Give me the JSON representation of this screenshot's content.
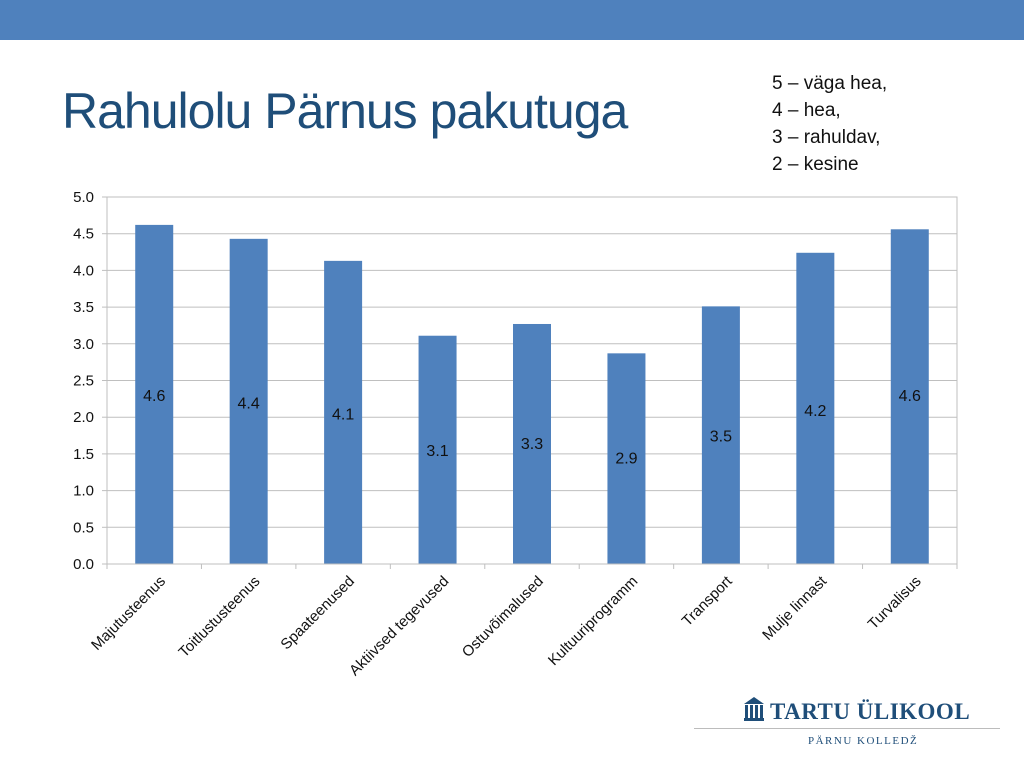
{
  "slide": {
    "title": "Rahulolu Pärnus pakutuga",
    "band_color": "#4f81bd",
    "title_color": "#1f4e79"
  },
  "legend_note": {
    "lines": [
      "5 – väga hea,",
      "4 – hea,",
      "3 – rahuldav,",
      "2 – kesine"
    ]
  },
  "chart_data": {
    "type": "bar",
    "categories": [
      "Majutusteenus",
      "Toitlustusteenus",
      "Spaateenused",
      "Aktiivsed tegevused",
      "Ostuvõimalused",
      "Kultuuriprogramm",
      "Transport",
      "Mulje linnast",
      "Turvalisus"
    ],
    "values": [
      4.62,
      4.43,
      4.13,
      3.11,
      3.27,
      2.87,
      3.51,
      4.24,
      4.56
    ],
    "data_labels": [
      "4.6",
      "4.4",
      "4.1",
      "3.1",
      "3.3",
      "2.9",
      "3.5",
      "4.2",
      "4.6"
    ],
    "label_values": [
      2.3,
      2.2,
      2.05,
      1.55,
      1.65,
      1.45,
      1.75,
      2.1,
      2.3
    ],
    "ylim": [
      0,
      5
    ],
    "y_ticks": [
      0,
      0.5,
      1,
      1.5,
      2,
      2.5,
      3,
      3.5,
      4,
      4.5,
      5
    ],
    "y_tick_labels": [
      "0.0",
      "0.5",
      "1.0",
      "1.5",
      "2.0",
      "2.5",
      "3.0",
      "3.5",
      "4.0",
      "4.5",
      "5.0"
    ],
    "xlabel": "",
    "ylabel": "",
    "grid": true,
    "bar_color": "#4f81bd"
  },
  "logo": {
    "name": "TARTU ÜLIKOOL",
    "subtitle": "PÄRNU KOLLEDŽ",
    "color": "#1f4e79"
  }
}
